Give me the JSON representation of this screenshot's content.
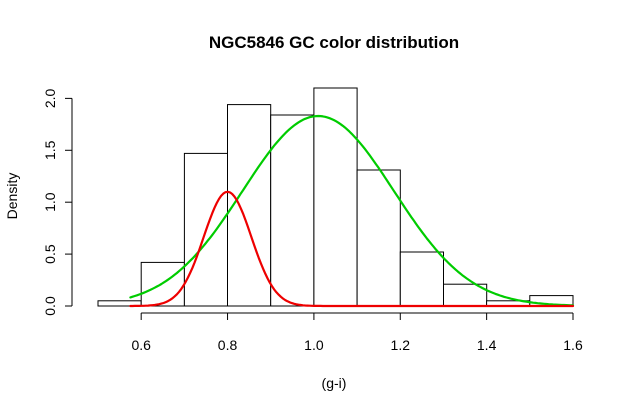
{
  "chart_data": {
    "type": "histogram",
    "title": "NGC5846 GC color distribution",
    "xlabel": "(g-i)",
    "ylabel": "Density",
    "xlim": [
      0.5,
      1.6
    ],
    "ylim": [
      0.0,
      2.1
    ],
    "x_ticks": [
      "0.6",
      "0.8",
      "1.0",
      "1.2",
      "1.4",
      "1.6"
    ],
    "y_ticks": [
      "0.0",
      "0.5",
      "1.0",
      "1.5",
      "2.0"
    ],
    "bins": [
      {
        "x0": 0.5,
        "x1": 0.6,
        "density": 0.05
      },
      {
        "x0": 0.6,
        "x1": 0.7,
        "density": 0.42
      },
      {
        "x0": 0.7,
        "x1": 0.8,
        "density": 1.47
      },
      {
        "x0": 0.8,
        "x1": 0.9,
        "density": 1.94
      },
      {
        "x0": 0.9,
        "x1": 1.0,
        "density": 1.84
      },
      {
        "x0": 1.0,
        "x1": 1.1,
        "density": 2.1
      },
      {
        "x0": 1.1,
        "x1": 1.2,
        "density": 1.31
      },
      {
        "x0": 1.2,
        "x1": 1.3,
        "density": 0.52
      },
      {
        "x0": 1.3,
        "x1": 1.4,
        "density": 0.21
      },
      {
        "x0": 1.4,
        "x1": 1.5,
        "density": 0.05
      },
      {
        "x0": 1.5,
        "x1": 1.6,
        "density": 0.1
      }
    ],
    "series": [
      {
        "type": "gaussian",
        "color": "#00cc00",
        "mean": 1.01,
        "sd": 0.175,
        "peak": 1.83,
        "x_range": [
          0.575,
          1.6
        ]
      },
      {
        "type": "gaussian",
        "color": "#ee0000",
        "mean": 0.8,
        "sd": 0.055,
        "peak": 1.1,
        "x_range": [
          0.575,
          1.6
        ]
      }
    ]
  }
}
